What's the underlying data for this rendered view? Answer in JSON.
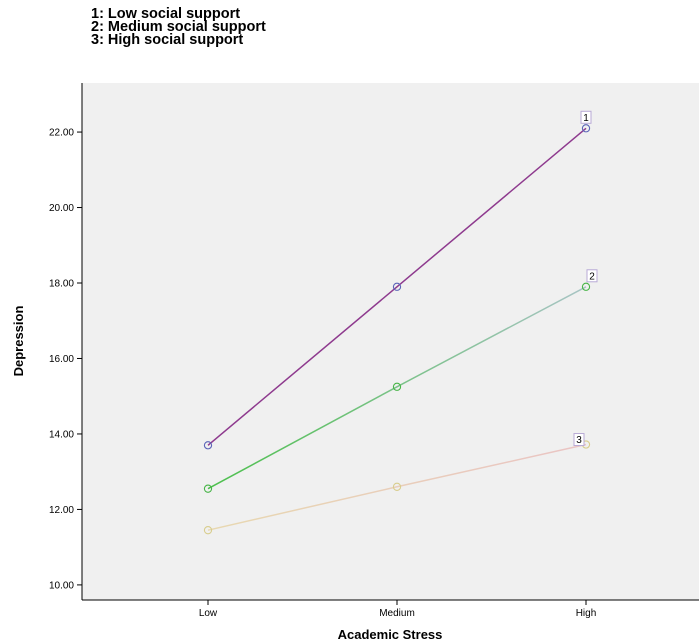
{
  "chart_data": {
    "type": "line",
    "title": "",
    "xlabel": "Academic Stress",
    "ylabel": "Depression",
    "categories": [
      "Low",
      "Medium",
      "High"
    ],
    "ylim": [
      9.6,
      23.3
    ],
    "yticks": [
      10,
      12,
      14,
      16,
      18,
      20,
      22
    ],
    "ytick_labels": [
      "10.00",
      "12.00",
      "14.00",
      "16.00",
      "18.00",
      "20.00",
      "22.00"
    ],
    "grid": false,
    "legend_placement": "top-left",
    "legend_entries": [
      "1: Low social support",
      "2: Medium social support",
      "3: High social support"
    ],
    "plot_background": "#f0f0f0",
    "series": [
      {
        "label": "1",
        "values": [
          13.7,
          17.9,
          22.1
        ],
        "line_color": "#8e3a8e",
        "marker_color": "#5b64b8"
      },
      {
        "label": "2",
        "values": [
          12.55,
          15.25,
          17.9
        ],
        "line_color_start": "#4cc04c",
        "line_color_end": "#a8c4c4",
        "marker_color": "#46b446"
      },
      {
        "label": "3",
        "values": [
          11.45,
          12.6,
          13.72
        ],
        "line_color": "#e8d8b0",
        "line_color_end": "#eac4c4",
        "marker_color": "#d8cd8c"
      }
    ]
  }
}
